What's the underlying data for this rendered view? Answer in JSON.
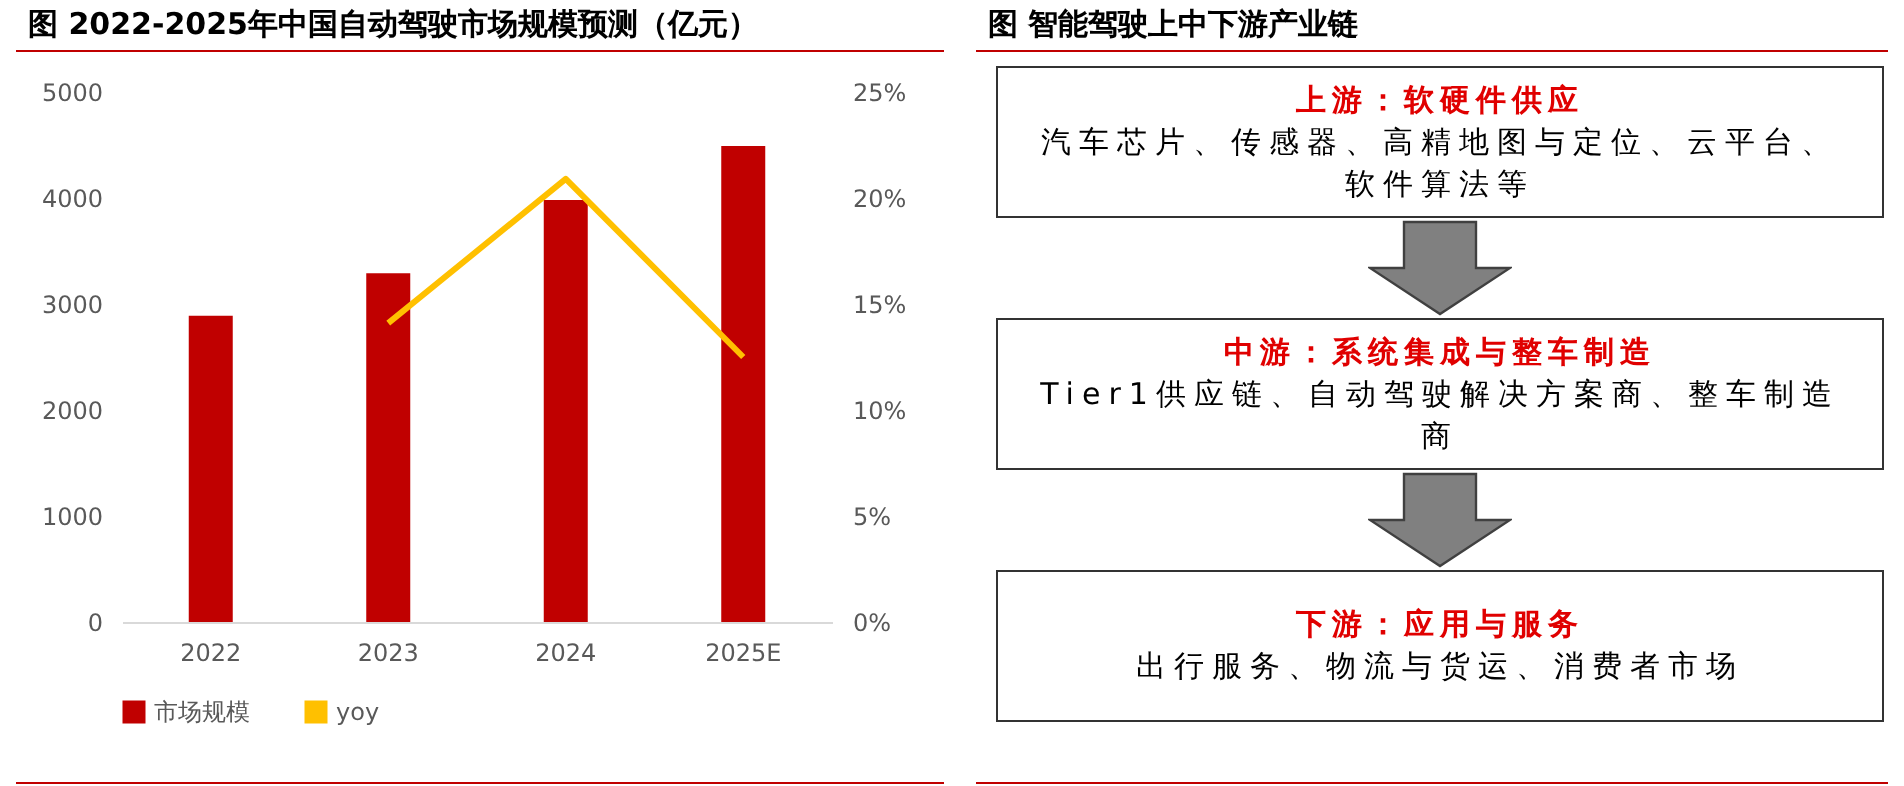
{
  "chart_data": [
    {
      "type": "bar",
      "title": "图 2022-2025年中国自动驾驶市场规模预测（亿元）",
      "categories": [
        "2022",
        "2023",
        "2024",
        "2025E"
      ],
      "series": [
        {
          "name": "市场规模",
          "type": "bar",
          "color": "#c00000",
          "values": [
            2890,
            3290,
            3980,
            4490
          ]
        },
        {
          "name": "yoy",
          "type": "line",
          "axis": "y2",
          "color": "#ffc000",
          "values": [
            null,
            14.1,
            20.9,
            12.5
          ]
        }
      ],
      "ylim": [
        0,
        5000
      ],
      "yticks": [
        0,
        1000,
        2000,
        3000,
        4000,
        5000
      ],
      "y2lim": [
        0,
        25
      ],
      "y2ticks": [
        {
          "value": 0,
          "label": "0%"
        },
        {
          "value": 5,
          "label": "5%"
        },
        {
          "value": 10,
          "label": "10%"
        },
        {
          "value": 15,
          "label": "15%"
        },
        {
          "value": 20,
          "label": "20%"
        },
        {
          "value": 25,
          "label": "25%"
        }
      ],
      "grid": false,
      "legend": "bottom",
      "marker": "none"
    },
    {
      "type": "other",
      "title": "图 智能驾驶上中下游产业链",
      "annotations": [
        "上游：软硬件供应",
        "汽车芯片、传感器、高精地图与定位、云平台、软件算法等",
        "中游：系统集成与整车制造",
        "Tier1供应链、自动驾驶解决方案商、整车制造商",
        "下游：应用与服务",
        "出行服务、物流与货运、消费者市场"
      ]
    }
  ]
}
